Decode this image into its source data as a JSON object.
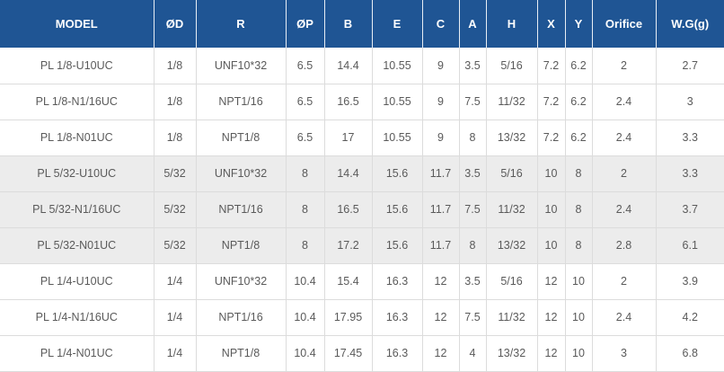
{
  "headers": [
    "MODEL",
    "ØD",
    "R",
    "ØP",
    "B",
    "E",
    "C",
    "A",
    "H",
    "X",
    "Y",
    "Orifice",
    "W.G(g)"
  ],
  "rows": [
    {
      "shaded": false,
      "cells": [
        "PL 1/8-U10UC",
        "1/8",
        "UNF10*32",
        "6.5",
        "14.4",
        "10.55",
        "9",
        "3.5",
        "5/16",
        "7.2",
        "6.2",
        "2",
        "2.7"
      ]
    },
    {
      "shaded": false,
      "cells": [
        "PL 1/8-N1/16UC",
        "1/8",
        "NPT1/16",
        "6.5",
        "16.5",
        "10.55",
        "9",
        "7.5",
        "11/32",
        "7.2",
        "6.2",
        "2.4",
        "3"
      ]
    },
    {
      "shaded": false,
      "cells": [
        "PL 1/8-N01UC",
        "1/8",
        "NPT1/8",
        "6.5",
        "17",
        "10.55",
        "9",
        "8",
        "13/32",
        "7.2",
        "6.2",
        "2.4",
        "3.3"
      ]
    },
    {
      "shaded": true,
      "cells": [
        "PL 5/32-U10UC",
        "5/32",
        "UNF10*32",
        "8",
        "14.4",
        "15.6",
        "11.7",
        "3.5",
        "5/16",
        "10",
        "8",
        "2",
        "3.3"
      ]
    },
    {
      "shaded": true,
      "cells": [
        "PL 5/32-N1/16UC",
        "5/32",
        "NPT1/16",
        "8",
        "16.5",
        "15.6",
        "11.7",
        "7.5",
        "11/32",
        "10",
        "8",
        "2.4",
        "3.7"
      ]
    },
    {
      "shaded": true,
      "cells": [
        "PL 5/32-N01UC",
        "5/32",
        "NPT1/8",
        "8",
        "17.2",
        "15.6",
        "11.7",
        "8",
        "13/32",
        "10",
        "8",
        "2.8",
        "6.1"
      ]
    },
    {
      "shaded": false,
      "cells": [
        "PL 1/4-U10UC",
        "1/4",
        "UNF10*32",
        "10.4",
        "15.4",
        "16.3",
        "12",
        "3.5",
        "5/16",
        "12",
        "10",
        "2",
        "3.9"
      ]
    },
    {
      "shaded": false,
      "cells": [
        "PL 1/4-N1/16UC",
        "1/4",
        "NPT1/16",
        "10.4",
        "17.95",
        "16.3",
        "12",
        "7.5",
        "11/32",
        "12",
        "10",
        "2.4",
        "4.2"
      ]
    },
    {
      "shaded": false,
      "cells": [
        "PL 1/4-N01UC",
        "1/4",
        "NPT1/8",
        "10.4",
        "17.45",
        "16.3",
        "12",
        "4",
        "13/32",
        "12",
        "10",
        "3",
        "6.8"
      ]
    }
  ],
  "colors": {
    "header_bg": "#1f5594",
    "shaded_row_bg": "#ececec",
    "text": "#5a5a5a"
  }
}
